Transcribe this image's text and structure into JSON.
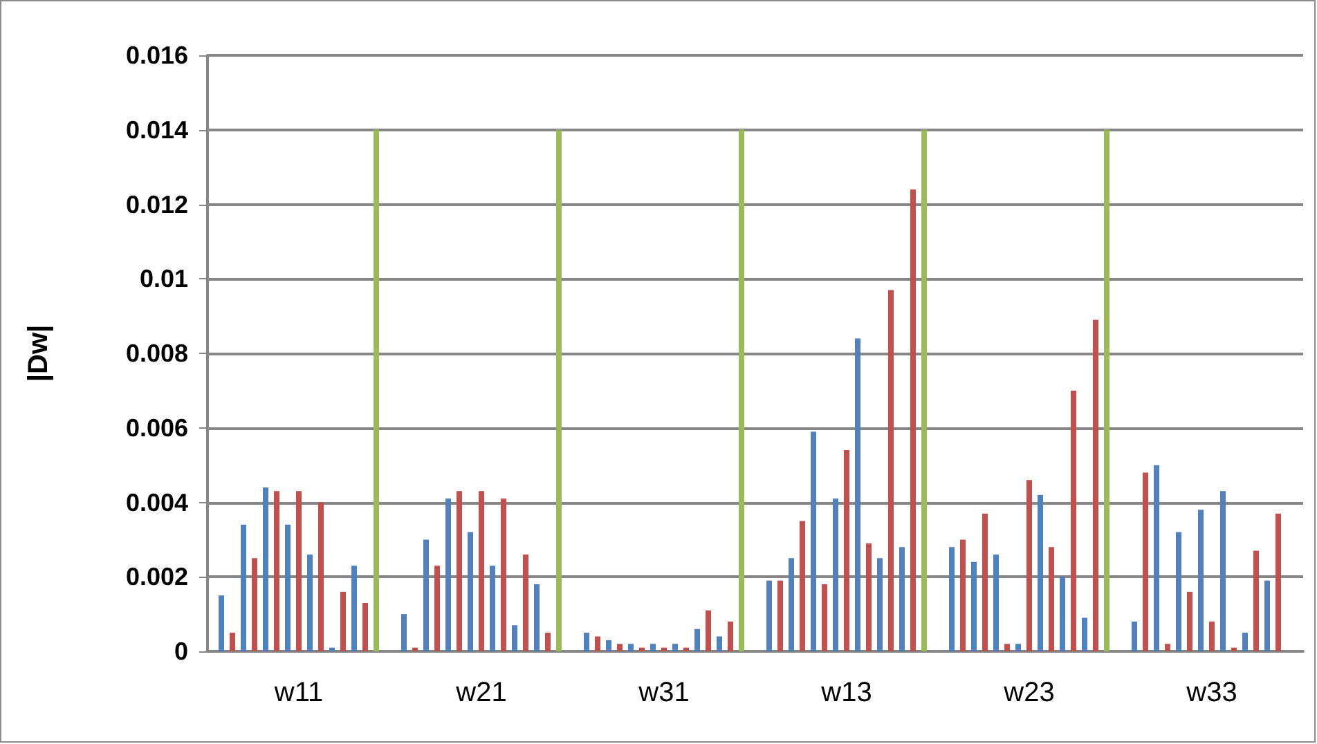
{
  "chart_data": {
    "type": "bar",
    "ylabel": "|Dw|",
    "categories": [
      "w11",
      "w21",
      "w31",
      "w13",
      "w23",
      "w33"
    ],
    "series": [
      {
        "color": "#4f81bd",
        "values": [
          0.0015,
          0.001,
          0.0005,
          0.0019,
          0.0028,
          0.0008
        ]
      },
      {
        "color": "#c0504d",
        "values": [
          0.0005,
          0.0001,
          0.0004,
          0.0019,
          0.003,
          0.0048
        ]
      },
      {
        "color": "#4f81bd",
        "values": [
          0.0034,
          0.003,
          0.0003,
          0.0025,
          0.0024,
          0.005
        ]
      },
      {
        "color": "#c0504d",
        "values": [
          0.0025,
          0.0023,
          0.0002,
          0.0035,
          0.0037,
          0.0002
        ]
      },
      {
        "color": "#4f81bd",
        "values": [
          0.0044,
          0.0041,
          0.0002,
          0.0059,
          0.0026,
          0.0032
        ]
      },
      {
        "color": "#c0504d",
        "values": [
          0.0043,
          0.0043,
          0.0001,
          0.0018,
          0.0002,
          0.0016
        ]
      },
      {
        "color": "#4f81bd",
        "values": [
          0.0034,
          0.0032,
          0.0002,
          0.0041,
          0.0002,
          0.0038
        ]
      },
      {
        "color": "#c0504d",
        "values": [
          0.0043,
          0.0043,
          0.0001,
          0.0054,
          0.0046,
          0.0008
        ]
      },
      {
        "color": "#4f81bd",
        "values": [
          0.0026,
          0.0023,
          0.0002,
          0.0084,
          0.0042,
          0.0043
        ]
      },
      {
        "color": "#c0504d",
        "values": [
          0.004,
          0.0041,
          0.0001,
          0.0029,
          0.0028,
          0.0001
        ]
      },
      {
        "color": "#4f81bd",
        "values": [
          0.0001,
          0.0007,
          0.0006,
          0.0025,
          0.002,
          0.0005
        ]
      },
      {
        "color": "#c0504d",
        "values": [
          0.0016,
          0.0026,
          0.0011,
          0.0097,
          0.007,
          0.0027
        ]
      },
      {
        "color": "#4f81bd",
        "values": [
          0.0023,
          0.0018,
          0.0004,
          0.0028,
          0.0009,
          0.0019
        ]
      },
      {
        "color": "#c0504d",
        "values": [
          0.0013,
          0.0005,
          0.0008,
          0.0124,
          0.0089,
          0.0037
        ]
      },
      {
        "color": "#9bbb59",
        "values": [
          0.014,
          0.014,
          0.014,
          0.014,
          0.014,
          null
        ]
      }
    ],
    "ylim": [
      0,
      0.016
    ],
    "yticks": [
      0,
      0.002,
      0.004,
      0.006,
      0.008,
      0.01,
      0.012,
      0.014,
      0.016
    ],
    "grid": "y"
  }
}
